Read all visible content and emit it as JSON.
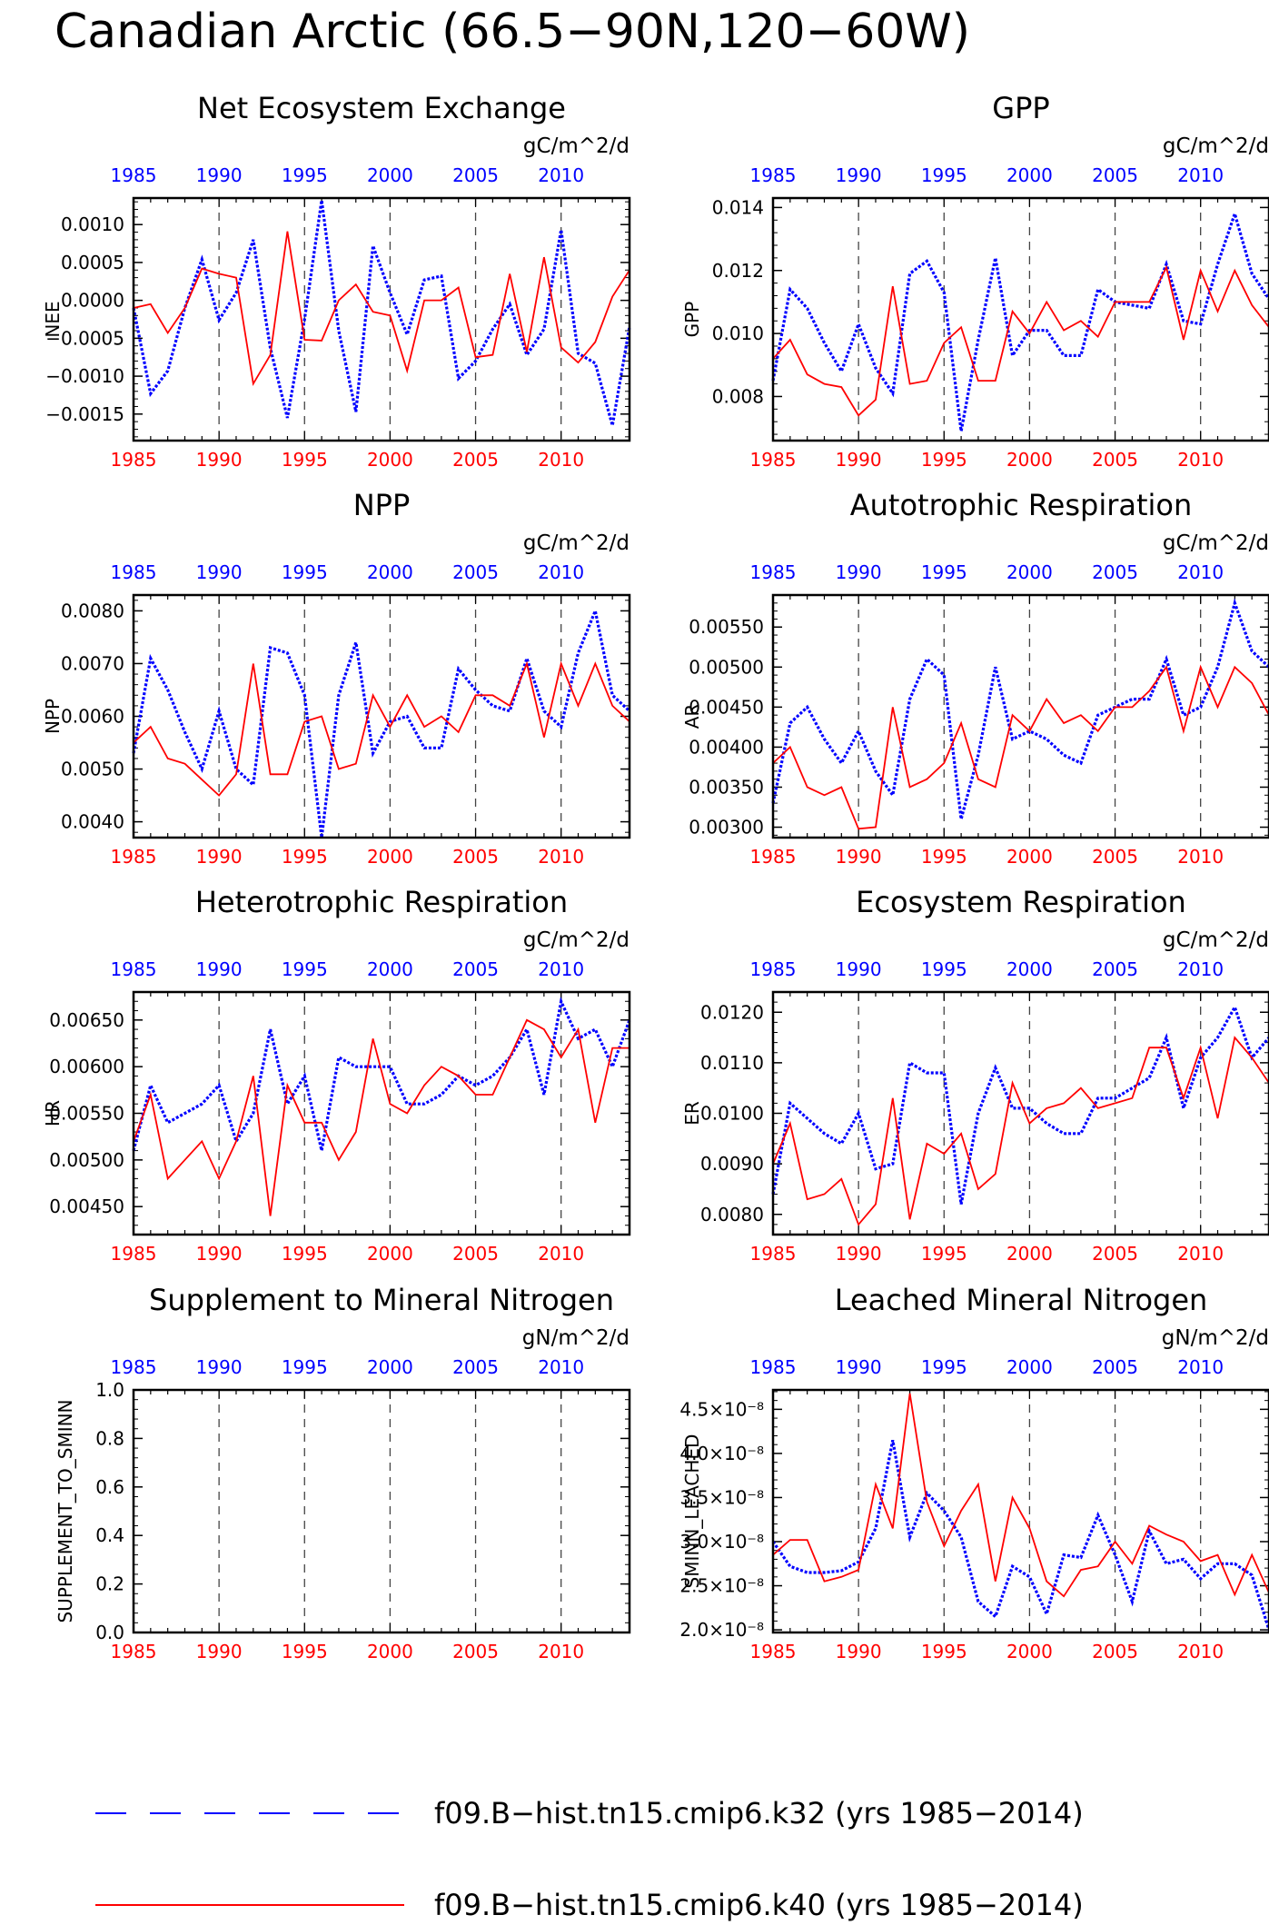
{
  "title": "Canadian Arctic (66.5−90N,120−60W)",
  "colors": {
    "k32": "#0000ff",
    "k40": "#ff0000",
    "grid": "#444444",
    "axis": "#000000"
  },
  "legend": [
    {
      "label": "f09.B−hist.tn15.cmip6.k32 (yrs 1985−2014)",
      "style": "dashed",
      "color": "#0000ff"
    },
    {
      "label": "f09.B−hist.tn15.cmip6.k40 (yrs 1985−2014)",
      "style": "solid",
      "color": "#ff0000"
    }
  ],
  "chart_data": [
    {
      "type": "line",
      "title": "Net Ecosystem Exchange",
      "units": "gC/m^2/d",
      "ylabel": "NEE",
      "ylim": [
        -0.00185,
        0.00135
      ],
      "yticks": [
        0.001,
        0.0005,
        0.0,
        -0.0005,
        -0.001,
        -0.0015
      ],
      "ytick_labels": [
        "0.0010",
        "0.0005",
        "0.0000",
        "−0.0005",
        "−0.0010",
        "−0.0015"
      ],
      "xticks_top": [
        "1985",
        "1990",
        "1995",
        "2000",
        "2005",
        "2010"
      ],
      "xticks_bottom": [
        "1985",
        "1990",
        "1995",
        "2000",
        "2005",
        "2010"
      ],
      "xlim": [
        1985,
        2014
      ],
      "series": [
        {
          "key": "k32",
          "values": [
            -0.0001,
            -0.00123,
            -0.00093,
            -0.0001,
            0.00054,
            -0.00026,
            0.0001,
            0.0008,
            -0.00063,
            -0.00155,
            -0.00025,
            0.00132,
            -0.0004,
            -0.00147,
            0.00072,
            0.0001,
            -0.00045,
            0.00027,
            0.00032,
            -0.00103,
            -0.0008,
            -0.00038,
            -5e-05,
            -0.00072,
            -0.00038,
            0.00093,
            -0.0007,
            -0.00083,
            -0.00165,
            -0.00035
          ]
        },
        {
          "key": "k40",
          "values": [
            -0.0001,
            -5e-05,
            -0.00043,
            -0.0001,
            0.00042,
            0.00035,
            0.0003,
            -0.0011,
            -0.00072,
            0.00091,
            -0.00052,
            -0.00053,
            0.0,
            0.00021,
            -0.00015,
            -0.0002,
            -0.00093,
            0.0,
            0.0,
            0.00017,
            -0.00075,
            -0.00072,
            0.00035,
            -0.00068,
            0.00057,
            -0.00062,
            -0.00082,
            -0.00055,
            5e-05,
            0.0004
          ]
        }
      ]
    },
    {
      "type": "line",
      "title": "GPP",
      "units": "gC/m^2/d",
      "ylabel": "GPP",
      "ylim": [
        0.0066,
        0.0143
      ],
      "yticks": [
        0.014,
        0.012,
        0.01,
        0.008
      ],
      "ytick_labels": [
        "0.014",
        "0.012",
        "0.010",
        "0.008"
      ],
      "xticks_top": [
        "1985",
        "1990",
        "1995",
        "2000",
        "2005",
        "2010"
      ],
      "xticks_bottom": [
        "1985",
        "1990",
        "1995",
        "2000",
        "2005",
        "2010"
      ],
      "xlim": [
        1985,
        2014
      ],
      "series": [
        {
          "key": "k32",
          "values": [
            0.0085,
            0.0114,
            0.0108,
            0.0097,
            0.0088,
            0.0103,
            0.0089,
            0.0081,
            0.0119,
            0.0123,
            0.0113,
            0.0069,
            0.0098,
            0.0124,
            0.0093,
            0.0101,
            0.0101,
            0.0093,
            0.0093,
            0.0114,
            0.011,
            0.0109,
            0.0108,
            0.0122,
            0.0104,
            0.0103,
            0.0122,
            0.0138,
            0.0119,
            0.0111
          ]
        },
        {
          "key": "k40",
          "values": [
            0.0092,
            0.0098,
            0.0087,
            0.0084,
            0.0083,
            0.0074,
            0.0079,
            0.0115,
            0.0084,
            0.0085,
            0.0097,
            0.0102,
            0.0085,
            0.0085,
            0.0107,
            0.01,
            0.011,
            0.0101,
            0.0104,
            0.0099,
            0.011,
            0.011,
            0.011,
            0.0121,
            0.0098,
            0.012,
            0.0107,
            0.012,
            0.0109,
            0.0102
          ]
        }
      ]
    },
    {
      "type": "line",
      "title": "NPP",
      "units": "gC/m^2/d",
      "ylabel": "NPP",
      "ylim": [
        0.0037,
        0.0083
      ],
      "yticks": [
        0.008,
        0.007,
        0.006,
        0.005,
        0.004
      ],
      "ytick_labels": [
        "0.0080",
        "0.0070",
        "0.0060",
        "0.0050",
        "0.0040"
      ],
      "xticks_top": [
        "1985",
        "1990",
        "1995",
        "2000",
        "2005",
        "2010"
      ],
      "xticks_bottom": [
        "1985",
        "1990",
        "1995",
        "2000",
        "2005",
        "2010"
      ],
      "xlim": [
        1985,
        2014
      ],
      "series": [
        {
          "key": "k32",
          "values": [
            0.0053,
            0.0071,
            0.0065,
            0.0057,
            0.005,
            0.0061,
            0.005,
            0.0047,
            0.0073,
            0.0072,
            0.0064,
            0.0037,
            0.0064,
            0.0074,
            0.0053,
            0.0059,
            0.006,
            0.0054,
            0.0054,
            0.0069,
            0.0065,
            0.0062,
            0.0061,
            0.0071,
            0.0061,
            0.0058,
            0.0072,
            0.008,
            0.0064,
            0.0061
          ]
        },
        {
          "key": "k40",
          "values": [
            0.0055,
            0.0058,
            0.0052,
            0.0051,
            0.0048,
            0.0045,
            0.0049,
            0.007,
            0.0049,
            0.0049,
            0.0059,
            0.006,
            0.005,
            0.0051,
            0.0064,
            0.0058,
            0.0064,
            0.0058,
            0.006,
            0.0057,
            0.0064,
            0.0064,
            0.0062,
            0.007,
            0.0056,
            0.007,
            0.0062,
            0.007,
            0.0062,
            0.0059
          ]
        }
      ]
    },
    {
      "type": "line",
      "title": "Autotrophic Respiration",
      "units": "gC/m^2/d",
      "ylabel": "AR",
      "ylim": [
        0.00287,
        0.0059
      ],
      "yticks": [
        0.0055,
        0.005,
        0.0045,
        0.004,
        0.0035,
        0.003
      ],
      "ytick_labels": [
        "0.00550",
        "0.00500",
        "0.00450",
        "0.00400",
        "0.00350",
        "0.00300"
      ],
      "xticks_top": [
        "1985",
        "1990",
        "1995",
        "2000",
        "2005",
        "2010"
      ],
      "xticks_bottom": [
        "1985",
        "1990",
        "1995",
        "2000",
        "2005",
        "2010"
      ],
      "xlim": [
        1985,
        2014
      ],
      "series": [
        {
          "key": "k32",
          "values": [
            0.0033,
            0.0043,
            0.0045,
            0.0041,
            0.0038,
            0.0042,
            0.0037,
            0.0034,
            0.0046,
            0.0051,
            0.0049,
            0.0031,
            0.0039,
            0.005,
            0.0041,
            0.0042,
            0.0041,
            0.0039,
            0.0038,
            0.0044,
            0.0045,
            0.0046,
            0.0046,
            0.0051,
            0.0044,
            0.0045,
            0.005,
            0.0058,
            0.0052,
            0.005
          ]
        },
        {
          "key": "k40",
          "values": [
            0.0038,
            0.004,
            0.0035,
            0.0034,
            0.0035,
            0.00298,
            0.003,
            0.0045,
            0.0035,
            0.0036,
            0.0038,
            0.0043,
            0.0036,
            0.0035,
            0.0044,
            0.0042,
            0.0046,
            0.0043,
            0.0044,
            0.0042,
            0.0045,
            0.0045,
            0.0047,
            0.005,
            0.0042,
            0.005,
            0.0045,
            0.005,
            0.0048,
            0.0044
          ]
        }
      ]
    },
    {
      "type": "line",
      "title": "Heterotrophic Respiration",
      "units": "gC/m^2/d",
      "ylabel": "HR",
      "ylim": [
        0.0042,
        0.0068
      ],
      "yticks": [
        0.0065,
        0.006,
        0.0055,
        0.005,
        0.0045
      ],
      "ytick_labels": [
        "0.00650",
        "0.00600",
        "0.00550",
        "0.00500",
        "0.00450"
      ],
      "xticks_top": [
        "1985",
        "1990",
        "1995",
        "2000",
        "2005",
        "2010"
      ],
      "xticks_bottom": [
        "1985",
        "1990",
        "1995",
        "2000",
        "2005",
        "2010"
      ],
      "xlim": [
        1985,
        2014
      ],
      "series": [
        {
          "key": "k32",
          "values": [
            0.0051,
            0.0058,
            0.0054,
            0.0055,
            0.0056,
            0.0058,
            0.0052,
            0.0055,
            0.0064,
            0.0056,
            0.0059,
            0.0051,
            0.0061,
            0.006,
            0.006,
            0.006,
            0.0056,
            0.0056,
            0.0057,
            0.0059,
            0.0058,
            0.0059,
            0.0061,
            0.0064,
            0.0057,
            0.0067,
            0.0063,
            0.0064,
            0.006,
            0.0065
          ]
        },
        {
          "key": "k40",
          "values": [
            0.0052,
            0.0057,
            0.0048,
            0.005,
            0.0052,
            0.0048,
            0.0052,
            0.0059,
            0.0044,
            0.0058,
            0.0054,
            0.0054,
            0.005,
            0.0053,
            0.0063,
            0.0056,
            0.0055,
            0.0058,
            0.006,
            0.0059,
            0.0057,
            0.0057,
            0.0061,
            0.0065,
            0.0064,
            0.0061,
            0.0064,
            0.0054,
            0.0062,
            0.0062
          ]
        }
      ]
    },
    {
      "type": "line",
      "title": "Ecosystem Respiration",
      "units": "gC/m^2/d",
      "ylabel": "ER",
      "ylim": [
        0.0076,
        0.0124
      ],
      "yticks": [
        0.012,
        0.011,
        0.01,
        0.009,
        0.008
      ],
      "ytick_labels": [
        "0.0120",
        "0.0110",
        "0.0100",
        "0.0090",
        "0.0080"
      ],
      "xticks_top": [
        "1985",
        "1990",
        "1995",
        "2000",
        "2005",
        "2010"
      ],
      "xticks_bottom": [
        "1985",
        "1990",
        "1995",
        "2000",
        "2005",
        "2010"
      ],
      "xlim": [
        1985,
        2014
      ],
      "series": [
        {
          "key": "k32",
          "values": [
            0.0084,
            0.0102,
            0.0099,
            0.0096,
            0.0094,
            0.01,
            0.0089,
            0.009,
            0.011,
            0.0108,
            0.0108,
            0.0082,
            0.01,
            0.0109,
            0.0101,
            0.0101,
            0.0098,
            0.0096,
            0.0096,
            0.0103,
            0.0103,
            0.0105,
            0.0107,
            0.0115,
            0.0101,
            0.0111,
            0.0115,
            0.0121,
            0.0111,
            0.0115
          ]
        },
        {
          "key": "k40",
          "values": [
            0.009,
            0.0098,
            0.0083,
            0.0084,
            0.0087,
            0.0078,
            0.0082,
            0.0103,
            0.0079,
            0.0094,
            0.0092,
            0.0096,
            0.0085,
            0.0088,
            0.0106,
            0.0098,
            0.0101,
            0.0102,
            0.0105,
            0.0101,
            0.0102,
            0.0103,
            0.0113,
            0.0113,
            0.0103,
            0.0113,
            0.0099,
            0.0115,
            0.0111,
            0.0106
          ]
        }
      ]
    },
    {
      "type": "line",
      "title": "Supplement to Mineral Nitrogen",
      "units": "gN/m^2/d",
      "ylabel": "SUPPLEMENT_TO_SMINN",
      "ylim": [
        0.0,
        1.0
      ],
      "yticks": [
        1.0,
        0.8,
        0.6,
        0.4,
        0.2,
        0.0
      ],
      "ytick_labels": [
        "1.0",
        "0.8",
        "0.6",
        "0.4",
        "0.2",
        "0.0"
      ],
      "xticks_top": [
        "1985",
        "1990",
        "1995",
        "2000",
        "2005",
        "2010"
      ],
      "xticks_bottom": [
        "1985",
        "1990",
        "1995",
        "2000",
        "2005",
        "2010"
      ],
      "xlim": [
        1985,
        2014
      ],
      "series": [
        {
          "key": "k32",
          "values": []
        },
        {
          "key": "k40",
          "values": []
        }
      ]
    },
    {
      "type": "line",
      "title": "Leached Mineral Nitrogen",
      "units": "gN/m^2/d",
      "ylabel": "SMINN_LEACHED",
      "ylim": [
        1.97e-08,
        4.72e-08
      ],
      "yticks": [
        4.5e-08,
        4e-08,
        3.5e-08,
        3e-08,
        2.5e-08,
        2e-08
      ],
      "ytick_labels": [
        "4.5×10⁻⁸",
        "4.0×10⁻⁸",
        "3.5×10⁻⁸",
        "3.0×10⁻⁸",
        "2.5×10⁻⁸",
        "2.0×10⁻⁸"
      ],
      "xticks_top": [
        "1985",
        "1990",
        "1995",
        "2000",
        "2005",
        "2010"
      ],
      "xticks_bottom": [
        "1985",
        "1990",
        "1995",
        "2000",
        "2005",
        "2010"
      ],
      "xlim": [
        1985,
        2014
      ],
      "series": [
        {
          "key": "k32",
          "values": [
            3e-08,
            2.72e-08,
            2.65e-08,
            2.65e-08,
            2.67e-08,
            2.77e-08,
            3.15e-08,
            4.15e-08,
            3.05e-08,
            3.55e-08,
            3.35e-08,
            3.05e-08,
            2.32e-08,
            2.15e-08,
            2.72e-08,
            2.6e-08,
            2.18e-08,
            2.85e-08,
            2.82e-08,
            3.3e-08,
            2.85e-08,
            2.32e-08,
            3.12e-08,
            2.75e-08,
            2.8e-08,
            2.58e-08,
            2.75e-08,
            2.75e-08,
            2.62e-08,
            2e-08
          ]
        },
        {
          "key": "k40",
          "values": [
            2.85e-08,
            3.02e-08,
            3.02e-08,
            2.55e-08,
            2.6e-08,
            2.68e-08,
            3.65e-08,
            3.15e-08,
            4.68e-08,
            3.45e-08,
            2.95e-08,
            3.35e-08,
            3.65e-08,
            2.55e-08,
            3.5e-08,
            3.15e-08,
            2.55e-08,
            2.38e-08,
            2.68e-08,
            2.72e-08,
            3e-08,
            2.75e-08,
            3.18e-08,
            3.08e-08,
            3e-08,
            2.78e-08,
            2.85e-08,
            2.4e-08,
            2.85e-08,
            2.42e-08
          ]
        }
      ]
    }
  ]
}
